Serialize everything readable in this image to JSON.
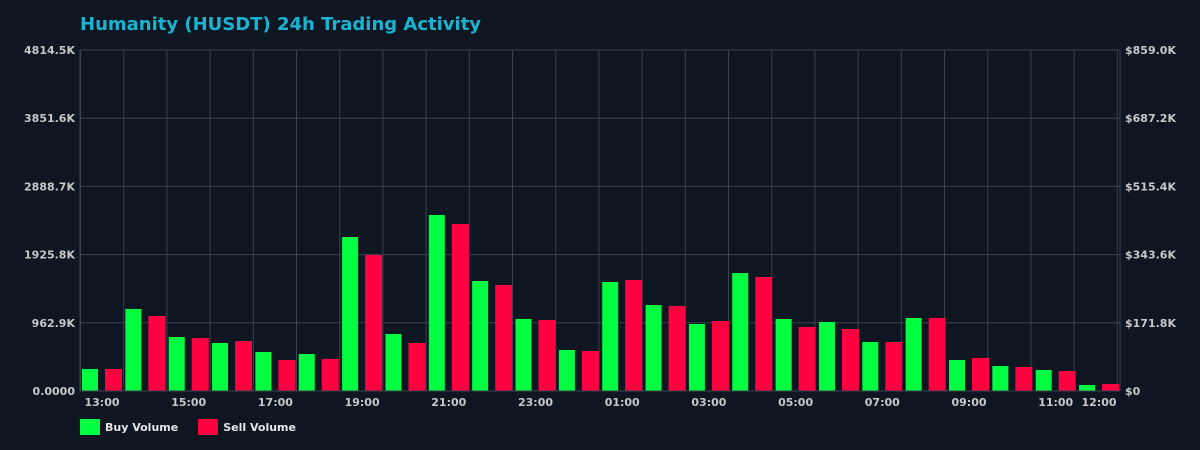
{
  "chart_data": {
    "type": "bar",
    "title": "Humanity (HUSDT) 24h Trading Activity",
    "xlabel": "",
    "ylabel": "",
    "ylim": [
      0,
      4814.5
    ],
    "y_unit": "K",
    "y_ticks": [
      "0.0000",
      "962.9K",
      "1925.8K",
      "2888.7K",
      "3851.6K",
      "4814.5K"
    ],
    "y2_ticks": [
      "$0",
      "$171.8K",
      "$343.6K",
      "$515.4K",
      "$687.2K",
      "$859.0K"
    ],
    "y2lim": [
      0,
      859.0
    ],
    "x_tick_labels": [
      "13:00",
      "15:00",
      "17:00",
      "19:00",
      "21:00",
      "23:00",
      "01:00",
      "03:00",
      "05:00",
      "07:00",
      "09:00",
      "11:00",
      "12:00"
    ],
    "categories": [
      "13:00",
      "14:00",
      "15:00",
      "16:00",
      "17:00",
      "18:00",
      "19:00",
      "20:00",
      "21:00",
      "22:00",
      "23:00",
      "00:00",
      "01:00",
      "02:00",
      "03:00",
      "04:00",
      "05:00",
      "06:00",
      "07:00",
      "08:00",
      "09:00",
      "10:00",
      "11:00",
      "12:00"
    ],
    "series": [
      {
        "name": "Buy Volume",
        "color": "#00ff41",
        "values": [
          311,
          1158,
          762,
          678,
          551,
          522,
          2174,
          805,
          2485,
          1553,
          1017,
          579,
          1539,
          1214,
          946,
          1666,
          1017,
          974,
          692,
          1031,
          438,
          353,
          297,
          85
        ]
      },
      {
        "name": "Sell Volume",
        "color": "#ff0040",
        "values": [
          311,
          1059,
          748,
          706,
          438,
          452,
          1920,
          678,
          2358,
          1497,
          1002,
          565,
          1567,
          1200,
          988,
          1610,
          904,
          875,
          692,
          1031,
          466,
          339,
          282,
          99
        ]
      }
    ],
    "grid": true,
    "legend_position": "bottom-left"
  },
  "legend": {
    "buy_label": "Buy Volume",
    "sell_label": "Sell Volume",
    "buy_color": "#00ff41",
    "sell_color": "#ff0040"
  },
  "colors": {
    "background": "#0d1621",
    "grid": "#3a4250",
    "title": "#1ab3d1",
    "tick_text": "#c8c8c8"
  }
}
